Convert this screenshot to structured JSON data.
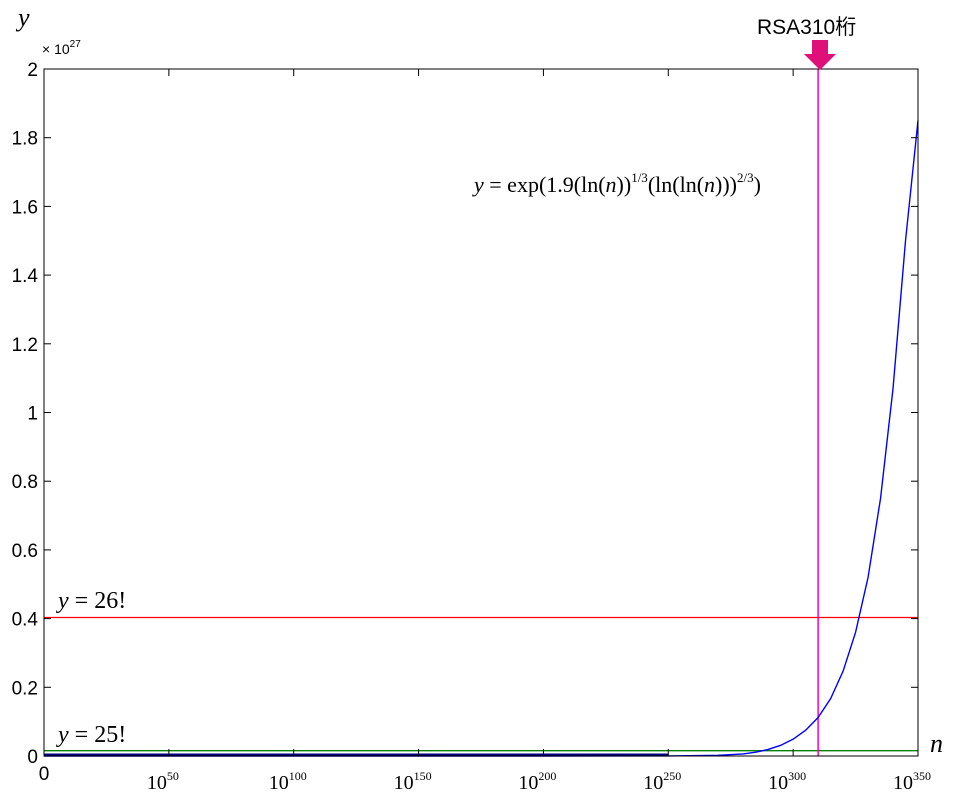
{
  "chart_data": {
    "type": "line",
    "xlabel": "n",
    "ylabel": "y",
    "y_multiplier": "× 10",
    "y_multiplier_exp": "27",
    "xscale": "log",
    "xlim": [
      0,
      350
    ],
    "ylim": [
      0,
      2
    ],
    "x_ticks": [
      {
        "base": "0",
        "exp": "",
        "value": 0
      },
      {
        "base": "10",
        "exp": "50",
        "value": 50
      },
      {
        "base": "10",
        "exp": "100",
        "value": 100
      },
      {
        "base": "10",
        "exp": "150",
        "value": 150
      },
      {
        "base": "10",
        "exp": "200",
        "value": 200
      },
      {
        "base": "10",
        "exp": "250",
        "value": 250
      },
      {
        "base": "10",
        "exp": "300",
        "value": 300
      },
      {
        "base": "10",
        "exp": "350",
        "value": 350
      }
    ],
    "y_ticks": [
      "0",
      "0.2",
      "0.4",
      "0.6",
      "0.8",
      "1",
      "1.2",
      "1.4",
      "1.6",
      "1.8",
      "2"
    ],
    "series": [
      {
        "color": "#0000ff",
        "x": [
          0,
          50,
          100,
          150,
          200,
          250,
          270,
          280,
          285,
          290,
          295,
          300,
          305,
          310,
          315,
          320,
          325,
          330,
          335,
          340,
          345,
          350
        ],
        "y": [
          0,
          0,
          0,
          0,
          0,
          0.0003,
          0.002,
          0.006,
          0.011,
          0.019,
          0.031,
          0.049,
          0.075,
          0.112,
          0.167,
          0.247,
          0.36,
          0.52,
          0.75,
          1.07,
          1.5,
          1.85
        ]
      }
    ],
    "hlines": [
      {
        "value": 0.4033,
        "color": "#ff0000",
        "label_y": "y",
        "label_text": " = 26!"
      },
      {
        "value": 0.0155,
        "color": "#008000",
        "label_y": "y",
        "label_text": " = 25!"
      }
    ],
    "vline": {
      "value": 310,
      "color": "#ff00bb",
      "label": "RSA310桁"
    },
    "formula": {
      "y": "y",
      "eq": " = exp(1.9(ln(",
      "n1": "n",
      "mid1": "))",
      "exp1": "1/3",
      "mid2": "(ln(ln(",
      "n2": "n",
      "mid3": ")))",
      "exp2": "2/3",
      "end": ")"
    }
  }
}
